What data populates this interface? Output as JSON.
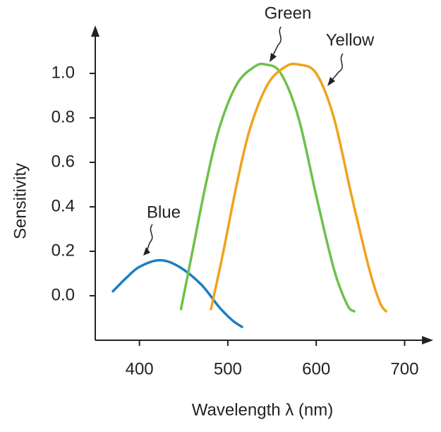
{
  "chart_data": {
    "type": "line",
    "xlabel": "Wavelength λ (nm)",
    "ylabel": "Sensitivity",
    "xlim": [
      350,
      730
    ],
    "ylim": [
      -0.2,
      1.2
    ],
    "xticks": [
      400,
      500,
      600,
      700
    ],
    "yticks": [
      {
        "value": 0,
        "label": "0.0"
      },
      0.2,
      0.4,
      0.6,
      0.8,
      {
        "value": 1,
        "label": "1.0"
      }
    ],
    "series": [
      {
        "name": "Blue",
        "color": "#1b7fc1",
        "x": [
          370,
          385,
          400,
          423,
          445,
          470,
          490,
          505,
          516
        ],
        "values": [
          0.02,
          0.08,
          0.13,
          0.16,
          0.13,
          0.05,
          -0.05,
          -0.11,
          -0.14
        ]
      },
      {
        "name": "Green",
        "color": "#6cc24a",
        "x": [
          447,
          460,
          475,
          490,
          510,
          530,
          543,
          560,
          580,
          600,
          620,
          635,
          643
        ],
        "values": [
          -0.06,
          0.2,
          0.5,
          0.75,
          0.95,
          1.03,
          1.04,
          1.0,
          0.8,
          0.45,
          0.12,
          -0.04,
          -0.07
        ]
      },
      {
        "name": "Yellow",
        "color": "#f0a31c",
        "x": [
          481,
          495,
          510,
          525,
          545,
          565,
          580,
          600,
          620,
          640,
          660,
          672,
          679
        ],
        "values": [
          -0.06,
          0.2,
          0.5,
          0.75,
          0.95,
          1.03,
          1.04,
          1.0,
          0.8,
          0.45,
          0.12,
          -0.03,
          -0.07
        ]
      }
    ]
  }
}
